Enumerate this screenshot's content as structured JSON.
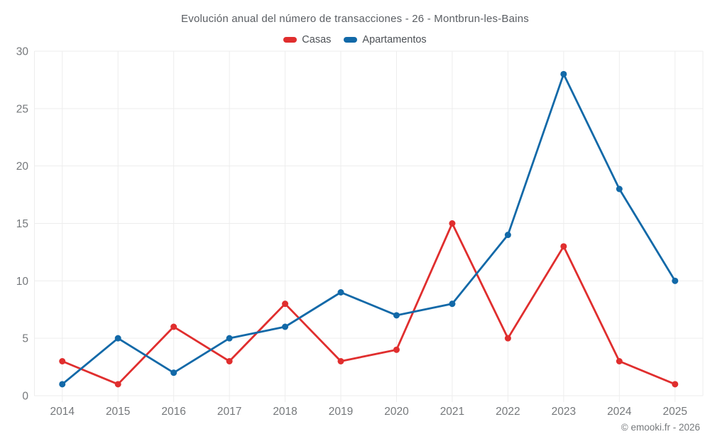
{
  "page": {
    "footer": "© emooki.fr - 2026"
  },
  "chart_data": {
    "type": "line",
    "title": "Evolución anual del número de transacciones - 26 - Montbrun-les-Bains",
    "categories": [
      "2014",
      "2015",
      "2016",
      "2017",
      "2018",
      "2019",
      "2020",
      "2021",
      "2022",
      "2023",
      "2024",
      "2025"
    ],
    "series": [
      {
        "name": "Casas",
        "color": "#e02e2e",
        "values": [
          3,
          1,
          6,
          3,
          8,
          3,
          4,
          15,
          5,
          13,
          3,
          1
        ]
      },
      {
        "name": "Apartamentos",
        "color": "#1269a8",
        "values": [
          1,
          5,
          2,
          5,
          6,
          9,
          7,
          8,
          14,
          28,
          18,
          10
        ]
      }
    ],
    "xlabel": "",
    "ylabel": "",
    "ylim": [
      0,
      30
    ],
    "yticks": [
      0,
      5,
      10,
      15,
      20,
      25,
      30
    ],
    "grid": true,
    "legend_position": "top",
    "styling": {
      "grid_color": "#ededed",
      "tick_color": "#e4e4e4",
      "axis_label_color": "#75787b",
      "marker_radius": 4.5,
      "line_width": 2.8
    }
  }
}
